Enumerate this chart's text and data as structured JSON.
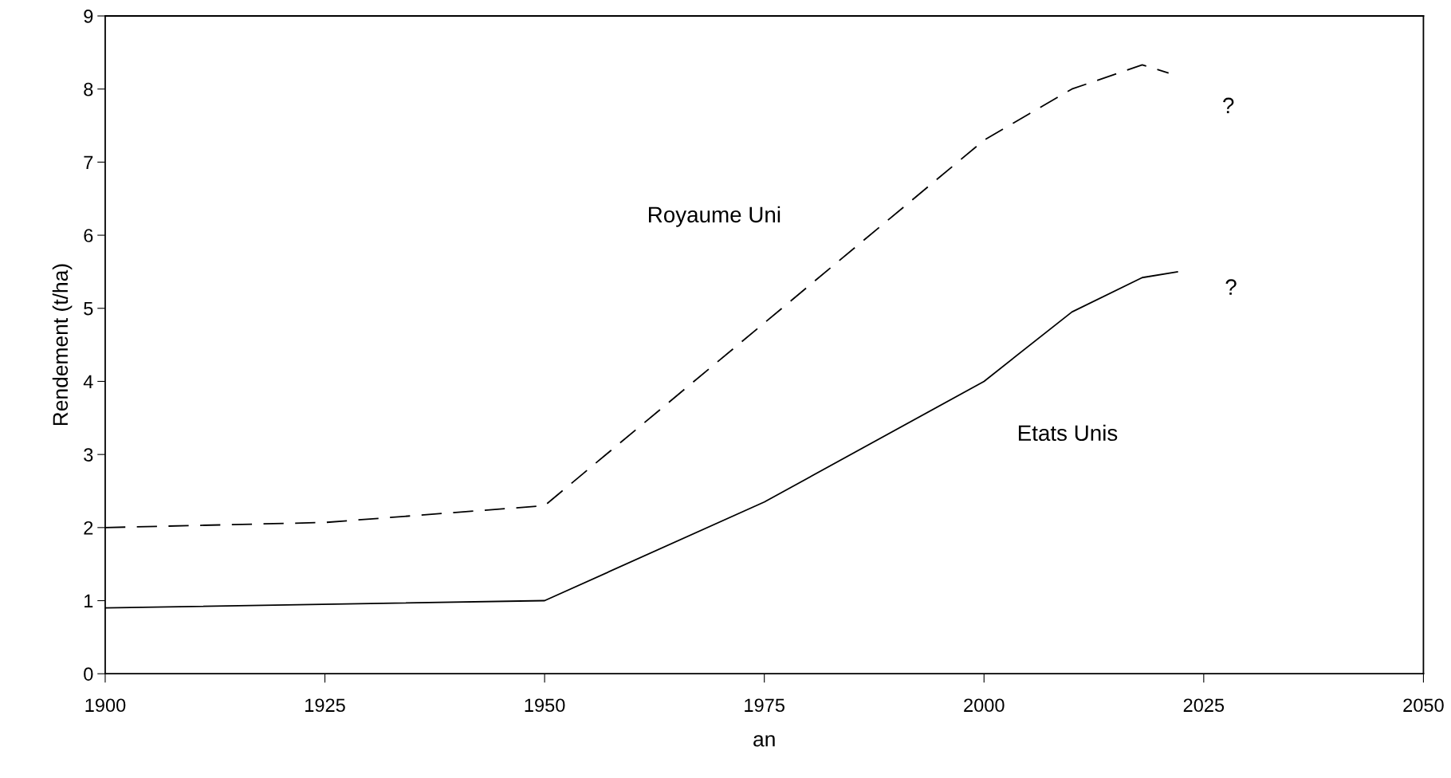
{
  "chart_data": {
    "type": "line",
    "xlabel": "an",
    "ylabel": "Rendement (t/ha)",
    "xlim": [
      1900,
      2050
    ],
    "xticks": [
      1900,
      1925,
      1950,
      1975,
      2000,
      2025,
      2050
    ],
    "ylim": [
      0,
      9
    ],
    "yticks": [
      0,
      1,
      2,
      3,
      4,
      5,
      6,
      7,
      8,
      9
    ],
    "grid": false,
    "series": [
      {
        "name": "Royaume Uni",
        "color": "#000000",
        "line_style": "dashed",
        "x": [
          1900,
          1925,
          1950,
          1975,
          2000,
          2010,
          2018,
          2021
        ],
        "values": [
          2.0,
          2.07,
          2.3,
          4.8,
          7.3,
          8.0,
          8.33,
          8.22
        ]
      },
      {
        "name": "Etats Unis",
        "color": "#000000",
        "line_style": "solid",
        "x": [
          1900,
          1950,
          1975,
          2000,
          2010,
          2018,
          2022
        ],
        "values": [
          0.9,
          1.0,
          2.35,
          4.0,
          4.95,
          5.42,
          5.5
        ]
      }
    ],
    "annotations": [
      "?",
      "?"
    ]
  }
}
